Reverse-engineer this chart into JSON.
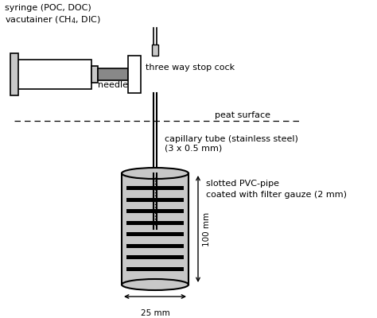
{
  "background_color": "#ffffff",
  "fig_width": 4.74,
  "fig_height": 4.0,
  "dpi": 100,
  "texts": {
    "syringe_label": "syringe (POC, DOC)",
    "vacutainer_label": "vacutainer (CH$_4$, DIC)",
    "needle_label": "needle",
    "stopcock_label": "three way stop cock",
    "peat_label": "peat surface",
    "capillary_label": "capillary tube (stainless steel)\n(3 x 0.5 mm)",
    "pvc_label1": "slotted PVC-pipe",
    "pvc_label2": "coated with filter gauze (2 mm)",
    "dim_100": "100 mm",
    "dim_25": "25 mm"
  },
  "colors": {
    "black": "#000000",
    "gray": "#a0a0a0",
    "light_gray": "#c8c8c8",
    "white": "#ffffff",
    "dark_gray": "#888888"
  }
}
